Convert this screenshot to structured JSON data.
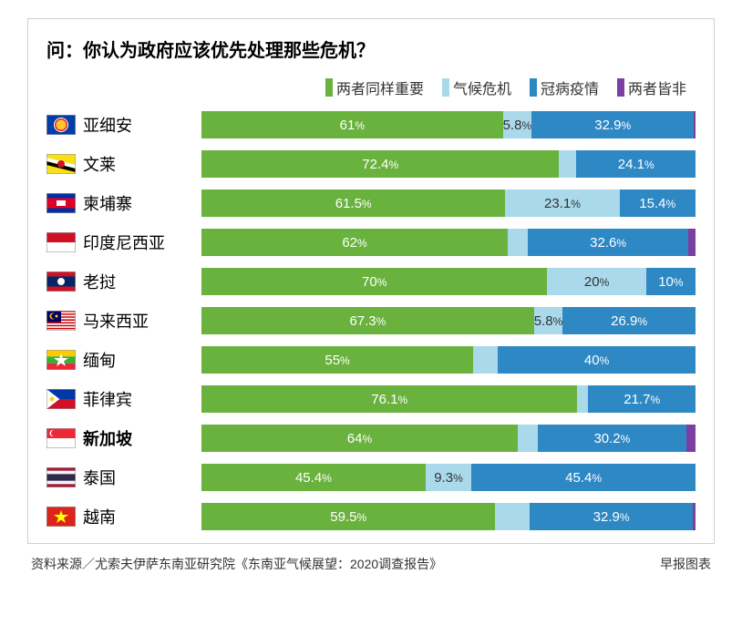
{
  "title": "问：你认为政府应该优先处理那些危机？",
  "legend": [
    {
      "label": "两者同样重要",
      "color": "#6ab23e"
    },
    {
      "label": "气候危机",
      "color": "#a9d9ea"
    },
    {
      "label": "冠病疫情",
      "color": "#2e88c4"
    },
    {
      "label": "两者皆非",
      "color": "#7b3fa0"
    }
  ],
  "series_colors": {
    "both_important": "#6ab23e",
    "climate": "#a9d9ea",
    "pandemic": "#2e88c4",
    "neither": "#7b3fa0"
  },
  "min_label_percent": 5.0,
  "rows": [
    {
      "name": "亚细安",
      "bold": false,
      "flag": {
        "type": "asean"
      },
      "segments": [
        {
          "value": 61.0,
          "color": "#6ab23e",
          "text": "#ffffff",
          "show": true
        },
        {
          "value": 5.8,
          "color": "#a9d9ea",
          "text": "#333333",
          "show": true
        },
        {
          "value": 32.9,
          "color": "#2e88c4",
          "text": "#ffffff",
          "show": true
        },
        {
          "value": 0.3,
          "color": "#7b3fa0",
          "text": "#ffffff",
          "show": false
        }
      ]
    },
    {
      "name": "文莱",
      "bold": false,
      "flag": {
        "type": "brunei"
      },
      "segments": [
        {
          "value": 72.4,
          "color": "#6ab23e",
          "text": "#ffffff",
          "show": true
        },
        {
          "value": 3.5,
          "color": "#a9d9ea",
          "text": "#333333",
          "show": false
        },
        {
          "value": 24.1,
          "color": "#2e88c4",
          "text": "#ffffff",
          "show": true
        },
        {
          "value": 0.0,
          "color": "#7b3fa0",
          "text": "#ffffff",
          "show": false
        }
      ]
    },
    {
      "name": "柬埔寨",
      "bold": false,
      "flag": {
        "type": "cambodia"
      },
      "segments": [
        {
          "value": 61.5,
          "color": "#6ab23e",
          "text": "#ffffff",
          "show": true
        },
        {
          "value": 23.1,
          "color": "#a9d9ea",
          "text": "#333333",
          "show": true
        },
        {
          "value": 15.4,
          "color": "#2e88c4",
          "text": "#ffffff",
          "show": true
        },
        {
          "value": 0.0,
          "color": "#7b3fa0",
          "text": "#ffffff",
          "show": false
        }
      ]
    },
    {
      "name": "印度尼西亚",
      "bold": false,
      "flag": {
        "type": "indonesia"
      },
      "segments": [
        {
          "value": 62.0,
          "color": "#6ab23e",
          "text": "#ffffff",
          "show": true
        },
        {
          "value": 4.0,
          "color": "#a9d9ea",
          "text": "#333333",
          "show": false
        },
        {
          "value": 32.6,
          "color": "#2e88c4",
          "text": "#ffffff",
          "show": true
        },
        {
          "value": 1.4,
          "color": "#7b3fa0",
          "text": "#ffffff",
          "show": false
        }
      ]
    },
    {
      "name": "老挝",
      "bold": false,
      "flag": {
        "type": "laos"
      },
      "segments": [
        {
          "value": 70.0,
          "color": "#6ab23e",
          "text": "#ffffff",
          "show": true
        },
        {
          "value": 20.0,
          "color": "#a9d9ea",
          "text": "#333333",
          "show": true
        },
        {
          "value": 10.0,
          "color": "#2e88c4",
          "text": "#ffffff",
          "show": true
        },
        {
          "value": 0.0,
          "color": "#7b3fa0",
          "text": "#ffffff",
          "show": false
        }
      ]
    },
    {
      "name": "马来西亚",
      "bold": false,
      "flag": {
        "type": "malaysia"
      },
      "segments": [
        {
          "value": 67.3,
          "color": "#6ab23e",
          "text": "#ffffff",
          "show": true
        },
        {
          "value": 5.8,
          "color": "#a9d9ea",
          "text": "#333333",
          "show": true
        },
        {
          "value": 26.9,
          "color": "#2e88c4",
          "text": "#ffffff",
          "show": true
        },
        {
          "value": 0.0,
          "color": "#7b3fa0",
          "text": "#ffffff",
          "show": false
        }
      ]
    },
    {
      "name": "缅甸",
      "bold": false,
      "flag": {
        "type": "myanmar"
      },
      "segments": [
        {
          "value": 55.0,
          "color": "#6ab23e",
          "text": "#ffffff",
          "show": true
        },
        {
          "value": 5.0,
          "color": "#a9d9ea",
          "text": "#333333",
          "show": false
        },
        {
          "value": 40.0,
          "color": "#2e88c4",
          "text": "#ffffff",
          "show": true
        },
        {
          "value": 0.0,
          "color": "#7b3fa0",
          "text": "#ffffff",
          "show": false
        }
      ]
    },
    {
      "name": "菲律宾",
      "bold": false,
      "flag": {
        "type": "philippines"
      },
      "segments": [
        {
          "value": 76.1,
          "color": "#6ab23e",
          "text": "#ffffff",
          "show": true
        },
        {
          "value": 2.2,
          "color": "#a9d9ea",
          "text": "#333333",
          "show": false
        },
        {
          "value": 21.7,
          "color": "#2e88c4",
          "text": "#ffffff",
          "show": true
        },
        {
          "value": 0.0,
          "color": "#7b3fa0",
          "text": "#ffffff",
          "show": false
        }
      ]
    },
    {
      "name": "新加坡",
      "bold": true,
      "flag": {
        "type": "singapore"
      },
      "segments": [
        {
          "value": 64.0,
          "color": "#6ab23e",
          "text": "#ffffff",
          "show": true
        },
        {
          "value": 4.0,
          "color": "#a9d9ea",
          "text": "#333333",
          "show": false
        },
        {
          "value": 30.2,
          "color": "#2e88c4",
          "text": "#ffffff",
          "show": true
        },
        {
          "value": 1.8,
          "color": "#7b3fa0",
          "text": "#ffffff",
          "show": false
        }
      ]
    },
    {
      "name": "泰国",
      "bold": false,
      "flag": {
        "type": "thailand"
      },
      "segments": [
        {
          "value": 45.4,
          "color": "#6ab23e",
          "text": "#ffffff",
          "show": true
        },
        {
          "value": 9.3,
          "color": "#a9d9ea",
          "text": "#333333",
          "show": true
        },
        {
          "value": 45.4,
          "color": "#2e88c4",
          "text": "#ffffff",
          "show": true
        },
        {
          "value": 0.0,
          "color": "#7b3fa0",
          "text": "#ffffff",
          "show": false
        }
      ]
    },
    {
      "name": "越南",
      "bold": false,
      "flag": {
        "type": "vietnam"
      },
      "segments": [
        {
          "value": 59.5,
          "color": "#6ab23e",
          "text": "#ffffff",
          "show": true
        },
        {
          "value": 7.0,
          "color": "#a9d9ea",
          "text": "#333333",
          "show": false
        },
        {
          "value": 32.9,
          "color": "#2e88c4",
          "text": "#ffffff",
          "show": true
        },
        {
          "value": 0.6,
          "color": "#7b3fa0",
          "text": "#ffffff",
          "show": false
        }
      ]
    }
  ],
  "source_left": "资料来源／尤索夫伊萨东南亚研究院《东南亚气候展望：2020调查报告》",
  "source_right": "早报图表"
}
